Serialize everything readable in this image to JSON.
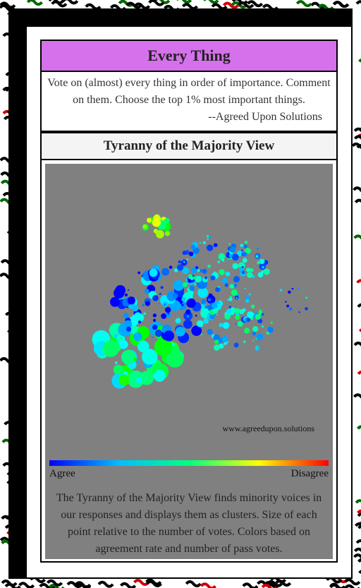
{
  "header": {
    "title": "Every Thing"
  },
  "intro": {
    "text": "Vote on (almost) every thing in order of importance. Comment on them. Choose the top 1% most important things.",
    "attribution": "--Agreed Upon Solutions"
  },
  "view": {
    "title": "Tyranny of the Majority View",
    "watermark": "www.agreedupon.solutions",
    "legend": {
      "low": "Agree",
      "high": "Disagree"
    },
    "description": "The Tyranny of the Majority View finds minority voices in our responses and displays them as clusters. Size of each point relative to the number of votes. Colors based on agreement rate and number of pass votes."
  }
}
